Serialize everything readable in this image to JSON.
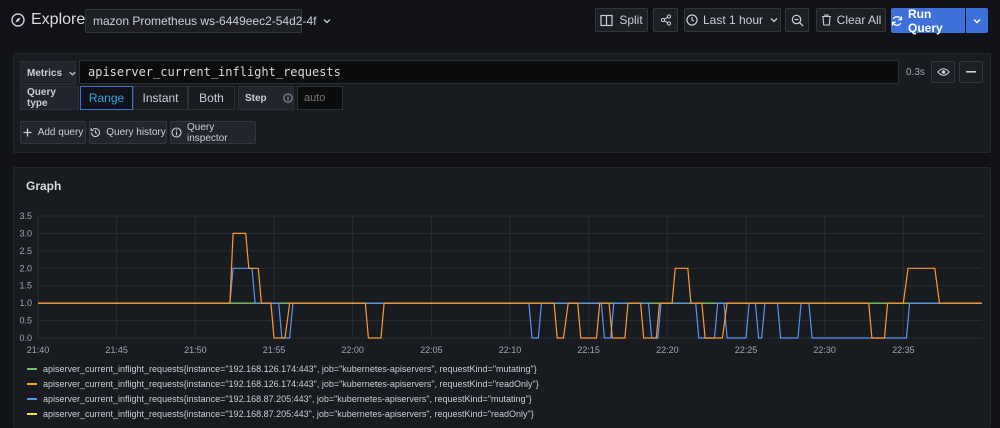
{
  "header": {
    "title": "Explore",
    "datasource": "mazon Prometheus ws-6449eec2-54d2-4f",
    "split_label": "Split",
    "time_range": "Last 1 hour",
    "clear_label": "Clear All",
    "run_label": "Run Query"
  },
  "query": {
    "metrics_label": "Metrics",
    "expression": "apiserver_current_inflight_requests",
    "duration": "0.3s",
    "query_type_label": "Query type",
    "types": [
      "Range",
      "Instant",
      "Both"
    ],
    "active_type": "Range",
    "step_label": "Step",
    "step_placeholder": "auto"
  },
  "actions": {
    "add_query": "Add query",
    "query_history": "Query history",
    "query_inspector": "Query inspector"
  },
  "graph": {
    "title": "Graph"
  },
  "colors": {
    "accent": "#3d71d9",
    "series_green": "#73bf69",
    "series_orange": "#ff9830",
    "series_blue": "#5794f2",
    "series_yellow": "#fade2a"
  },
  "chart_data": {
    "type": "line",
    "title": "",
    "xlabel": "",
    "ylabel": "",
    "ylim": [
      0,
      3.5
    ],
    "yticks": [
      "0.0",
      "0.5",
      "1.0",
      "1.5",
      "2.0",
      "2.5",
      "3.0",
      "3.5"
    ],
    "xlim": [
      0,
      60
    ],
    "xtick_minutes": [
      0,
      5,
      10,
      15,
      20,
      25,
      30,
      35,
      40,
      45,
      50,
      55
    ],
    "xtick_labels": [
      "21:40",
      "21:45",
      "21:50",
      "21:55",
      "22:00",
      "22:05",
      "22:10",
      "22:15",
      "22:20",
      "22:25",
      "22:30",
      "22:35"
    ],
    "grid": true,
    "legend_position": "bottom",
    "series": [
      {
        "name": "apiserver_current_inflight_requests{instance=\"192.168.126.174:443\", job=\"kubernetes-apiservers\", requestKind=\"mutating\"}",
        "color": "#73bf69",
        "x": [
          0,
          60
        ],
        "y": [
          1,
          1
        ]
      },
      {
        "name": "apiserver_current_inflight_requests{instance=\"192.168.126.174:443\", job=\"kubernetes-apiservers\", requestKind=\"readOnly\"}",
        "color": "#ff9830",
        "x": [
          0,
          12.2,
          12.4,
          13.2,
          13.4,
          14.0,
          14.2,
          14.8,
          15.0,
          15.7,
          16.0,
          20.8,
          21.0,
          21.8,
          22.0,
          32.8,
          33.0,
          33.4,
          33.7,
          34.3,
          34.5,
          35.5,
          35.7,
          36.3,
          36.5,
          37.3,
          37.5,
          38.3,
          38.5,
          39.3,
          39.5,
          40.3,
          40.5,
          41.3,
          41.5,
          42.2,
          42.4,
          43.5,
          43.8,
          44.2,
          44.5,
          52.8,
          53.0,
          53.8,
          54.0,
          55.0,
          55.3,
          57.0,
          57.3,
          60
        ],
        "y": [
          1,
          1,
          3,
          3,
          2,
          2,
          1,
          1,
          0,
          0,
          1,
          1,
          0,
          0,
          1,
          1,
          0,
          0,
          1,
          1,
          0,
          0,
          1,
          1,
          0,
          0,
          1,
          1,
          0,
          0,
          1,
          1,
          2,
          2,
          1,
          1,
          0,
          0,
          1,
          1,
          1,
          1,
          0,
          0,
          1,
          1,
          2,
          2,
          1,
          1
        ]
      },
      {
        "name": "apiserver_current_inflight_requests{instance=\"192.168.87.205:443\", job=\"kubernetes-apiservers\", requestKind=\"mutating\"}",
        "color": "#5794f2",
        "x": [
          0,
          12.2,
          12.4,
          13.6,
          13.8,
          15.3,
          15.5,
          16.0,
          16.2,
          31.2,
          31.4,
          31.8,
          32.0,
          35.8,
          36.0,
          36.4,
          36.6,
          38.8,
          39.0,
          39.4,
          39.6,
          41.8,
          42.0,
          43.0,
          43.2,
          43.6,
          43.8,
          45.0,
          45.2,
          45.6,
          45.8,
          46.0,
          46.2,
          47.0,
          47.2,
          48.3,
          48.5,
          49.0,
          49.2,
          55.2,
          55.4,
          57.0,
          57.2,
          60
        ],
        "y": [
          1,
          1,
          2,
          2,
          1,
          1,
          0,
          0,
          1,
          1,
          0,
          0,
          1,
          1,
          0,
          0,
          1,
          1,
          0,
          0,
          1,
          1,
          0,
          0,
          1,
          1,
          0,
          0,
          1,
          1,
          0,
          0,
          1,
          1,
          0,
          0,
          1,
          1,
          0,
          0,
          1,
          1,
          1,
          1
        ]
      },
      {
        "name": "apiserver_current_inflight_requests{instance=\"192.168.87.205:443\", job=\"kubernetes-apiservers\", requestKind=\"readOnly\"}",
        "color": "#fade2a",
        "x": [
          0,
          60
        ],
        "y": [
          1,
          1
        ]
      }
    ]
  }
}
